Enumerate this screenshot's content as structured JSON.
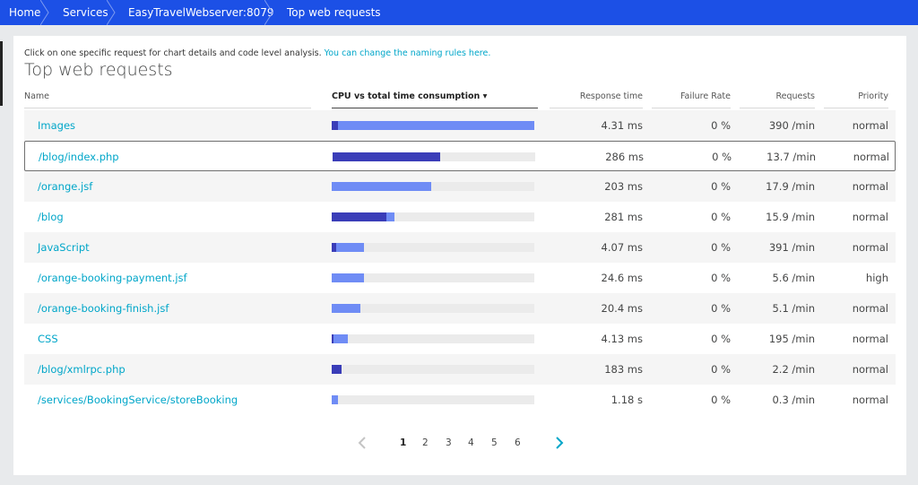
{
  "breadcrumb": {
    "items": [
      "Home",
      "Services",
      "EasyTravelWebserver:8079",
      "Top web requests"
    ]
  },
  "hint": {
    "text": "Click on one specific request for chart details and code level analysis.",
    "link": "You can change the naming rules here."
  },
  "page_title": "Top web requests",
  "columns": {
    "name": "Name",
    "cpu": "CPU vs total time consumption ▾",
    "response": "Response time",
    "failure": "Failure Rate",
    "requests": "Requests",
    "priority": "Priority"
  },
  "colors": {
    "breadcrumb_bg": "#1c50e6",
    "link": "#00a6c9",
    "cpu_bar": "#3a3db8",
    "total_bar": "#6f8cf5",
    "track": "#ebebeb"
  },
  "rows": [
    {
      "name": "Images",
      "cpu_frac": 0.03,
      "total_frac": 1.0,
      "response": "4.31 ms",
      "failure": "0 %",
      "requests": "390 /min",
      "priority": "normal"
    },
    {
      "name": "/blog/index.php",
      "cpu_frac": 0.53,
      "total_frac": 0.53,
      "response": "286 ms",
      "failure": "0 %",
      "requests": "13.7 /min",
      "priority": "normal",
      "selected": true
    },
    {
      "name": "/orange.jsf",
      "cpu_frac": 0.0,
      "total_frac": 0.49,
      "response": "203 ms",
      "failure": "0 %",
      "requests": "17.9 /min",
      "priority": "normal"
    },
    {
      "name": "/blog",
      "cpu_frac": 0.27,
      "total_frac": 0.31,
      "response": "281 ms",
      "failure": "0 %",
      "requests": "15.9 /min",
      "priority": "normal"
    },
    {
      "name": "JavaScript",
      "cpu_frac": 0.02,
      "total_frac": 0.16,
      "response": "4.07 ms",
      "failure": "0 %",
      "requests": "391 /min",
      "priority": "normal"
    },
    {
      "name": "/orange-booking-payment.jsf",
      "cpu_frac": 0.0,
      "total_frac": 0.16,
      "response": "24.6 ms",
      "failure": "0 %",
      "requests": "5.6 /min",
      "priority": "high"
    },
    {
      "name": "/orange-booking-finish.jsf",
      "cpu_frac": 0.0,
      "total_frac": 0.14,
      "response": "20.4 ms",
      "failure": "0 %",
      "requests": "5.1 /min",
      "priority": "normal"
    },
    {
      "name": "CSS",
      "cpu_frac": 0.01,
      "total_frac": 0.08,
      "response": "4.13 ms",
      "failure": "0 %",
      "requests": "195 /min",
      "priority": "normal"
    },
    {
      "name": "/blog/xmlrpc.php",
      "cpu_frac": 0.05,
      "total_frac": 0.05,
      "response": "183 ms",
      "failure": "0 %",
      "requests": "2.2 /min",
      "priority": "normal"
    },
    {
      "name": "/services/BookingService/storeBooking",
      "cpu_frac": 0.0,
      "total_frac": 0.03,
      "response": "1.18 s",
      "failure": "0 %",
      "requests": "0.3 /min",
      "priority": "normal"
    }
  ],
  "pagination": {
    "pages": [
      "1",
      "2",
      "3",
      "4",
      "5",
      "6"
    ],
    "current": "1"
  }
}
